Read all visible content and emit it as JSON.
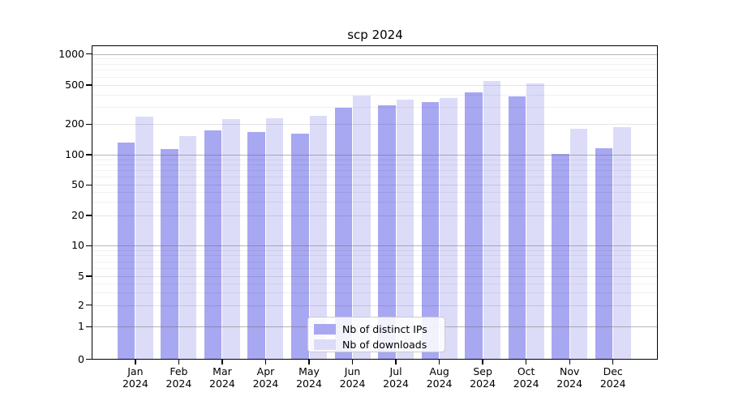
{
  "chart_data": {
    "type": "bar",
    "title": "scp 2024",
    "categories": [
      {
        "month": "Jan",
        "year": "2024"
      },
      {
        "month": "Feb",
        "year": "2024"
      },
      {
        "month": "Mar",
        "year": "2024"
      },
      {
        "month": "Apr",
        "year": "2024"
      },
      {
        "month": "May",
        "year": "2024"
      },
      {
        "month": "Jun",
        "year": "2024"
      },
      {
        "month": "Jul",
        "year": "2024"
      },
      {
        "month": "Aug",
        "year": "2024"
      },
      {
        "month": "Sep",
        "year": "2024"
      },
      {
        "month": "Oct",
        "year": "2024"
      },
      {
        "month": "Nov",
        "year": "2024"
      },
      {
        "month": "Dec",
        "year": "2024"
      }
    ],
    "series": [
      {
        "name": "Nb of distinct IPs",
        "color": "#a7a7f2",
        "values": [
          132,
          113,
          174,
          166,
          161,
          292,
          311,
          338,
          424,
          386,
          102,
          115
        ]
      },
      {
        "name": "Nb of downloads",
        "color": "#dcdcf9",
        "values": [
          239,
          152,
          227,
          230,
          245,
          388,
          357,
          371,
          545,
          519,
          180,
          188
        ]
      }
    ],
    "y_axis": {
      "scale": "symlog",
      "ticks": [
        0,
        1,
        2,
        5,
        10,
        20,
        50,
        100,
        200,
        500,
        1000
      ],
      "minor_gridlines": [
        3,
        4,
        6,
        7,
        8,
        9,
        30,
        40,
        60,
        70,
        80,
        90,
        300,
        400,
        600,
        700,
        800,
        900
      ]
    },
    "grid": true,
    "legend_position": "lower center"
  }
}
